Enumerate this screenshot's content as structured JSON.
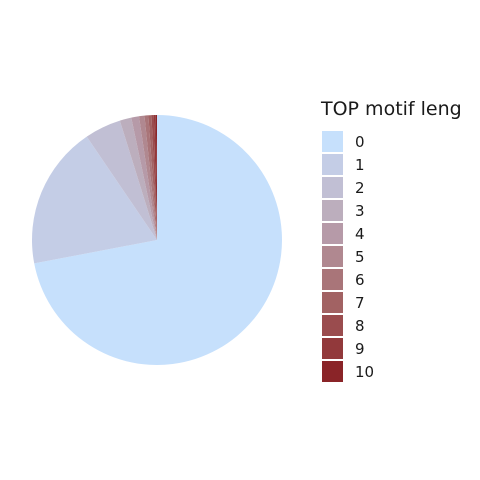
{
  "chart_data": {
    "type": "pie",
    "legend_title": "TOP motif leng",
    "legend_position": "right",
    "start_angle": "12 o'clock",
    "direction": "clockwise",
    "categories": [
      "0",
      "1",
      "2",
      "3",
      "4",
      "5",
      "6",
      "7",
      "8",
      "9",
      "10"
    ],
    "values": [
      72.0,
      18.5,
      4.7,
      1.5,
      1.0,
      0.7,
      0.5,
      0.4,
      0.3,
      0.25,
      0.15
    ],
    "colors": [
      "#c6e0fc",
      "#c4cde6",
      "#c1bfd4",
      "#bcaebd",
      "#b69aa8",
      "#b08890",
      "#a97579",
      "#a26263",
      "#9a4c4e",
      "#92393b",
      "#8a2428"
    ]
  }
}
